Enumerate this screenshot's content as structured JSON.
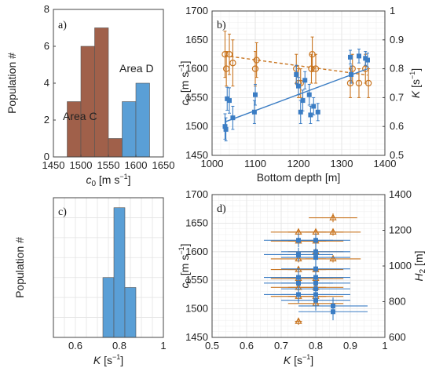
{
  "colors": {
    "blue": "#3b7dc4",
    "orange": "#c8741f",
    "brown": "#a0604a",
    "blueHist": "#5a9fd6",
    "purple": "#7a4f8a",
    "gray": "#5a5a5a"
  },
  "chart_data": [
    {
      "panel": "a)",
      "type": "bar",
      "title": "",
      "xlabel_base": "c",
      "xlabel_sub": "0",
      "xlabel_unit_pre": "[m s",
      "xlabel_unit_sup": "−1",
      "xlabel_unit_post": "]",
      "ylabel": "Population #",
      "xlim": [
        1450,
        1650
      ],
      "ylim": [
        0,
        8
      ],
      "xticks": [
        1450,
        1500,
        1550,
        1600,
        1650
      ],
      "yticks": [
        0,
        2,
        4,
        6,
        8
      ],
      "bin_width": 25,
      "series": [
        {
          "name": "Area C",
          "bins": [
            1487.5,
            1512.5,
            1537.5,
            1562.5,
            1587.5
          ],
          "values": [
            3,
            6,
            7,
            1,
            1
          ]
        },
        {
          "name": "Area D",
          "bins": [
            1587.5,
            1612.5
          ],
          "values": [
            3,
            4
          ]
        }
      ]
    },
    {
      "panel": "b)",
      "type": "scatter",
      "xlabel": "Bottom depth [m]",
      "ylabel_left_base": "c",
      "ylabel_left_sub": "0",
      "ylabel_left_unit_pre": "[m s",
      "ylabel_left_unit_sup": "−1",
      "ylabel_left_unit_post": "]",
      "ylabel_right_base": "K",
      "ylabel_right_unit_pre": "[s",
      "ylabel_right_unit_sup": "−1",
      "ylabel_right_unit_post": "]",
      "xlim": [
        1000,
        1400
      ],
      "ylim_left": [
        1450,
        1700
      ],
      "ylim_right": [
        0.5,
        1
      ],
      "xticks": [
        1000,
        1100,
        1200,
        1300,
        1400
      ],
      "yticks_left": [
        1450,
        1500,
        1550,
        1600,
        1650,
        1700
      ],
      "yticks_right": [
        0.5,
        0.6,
        0.7,
        0.8,
        0.9,
        1
      ],
      "c0_points": [
        {
          "x": 1030,
          "y": 1500,
          "err": 22
        },
        {
          "x": 1032,
          "y": 1495,
          "err": 20
        },
        {
          "x": 1035,
          "y": 1548,
          "err": 20
        },
        {
          "x": 1040,
          "y": 1545,
          "err": 22
        },
        {
          "x": 1048,
          "y": 1515,
          "err": 20
        },
        {
          "x": 1100,
          "y": 1555,
          "err": 18
        },
        {
          "x": 1098,
          "y": 1525,
          "err": 20
        },
        {
          "x": 1195,
          "y": 1590,
          "err": 16
        },
        {
          "x": 1200,
          "y": 1570,
          "err": 15
        },
        {
          "x": 1205,
          "y": 1525,
          "err": 20
        },
        {
          "x": 1210,
          "y": 1545,
          "err": 18
        },
        {
          "x": 1215,
          "y": 1580,
          "err": 15
        },
        {
          "x": 1225,
          "y": 1555,
          "err": 18
        },
        {
          "x": 1228,
          "y": 1520,
          "err": 15
        },
        {
          "x": 1235,
          "y": 1535,
          "err": 15
        },
        {
          "x": 1245,
          "y": 1525,
          "err": 15
        },
        {
          "x": 1320,
          "y": 1620,
          "err": 12
        },
        {
          "x": 1322,
          "y": 1590,
          "err": 15
        },
        {
          "x": 1340,
          "y": 1622,
          "err": 12
        },
        {
          "x": 1355,
          "y": 1618,
          "err": 12
        },
        {
          "x": 1360,
          "y": 1615,
          "err": 12
        }
      ],
      "c0_fit": {
        "x": [
          1030,
          1360
        ],
        "y": [
          1508,
          1600
        ]
      },
      "K_points": [
        {
          "x": 1030,
          "y": 0.85,
          "err": 0.08
        },
        {
          "x": 1033,
          "y": 0.8,
          "err": 0.06
        },
        {
          "x": 1040,
          "y": 0.85,
          "err": 0.07
        },
        {
          "x": 1048,
          "y": 0.82,
          "err": 0.08
        },
        {
          "x": 1100,
          "y": 0.8,
          "err": 0.06
        },
        {
          "x": 1103,
          "y": 0.83,
          "err": 0.06
        },
        {
          "x": 1195,
          "y": 0.8,
          "err": 0.05
        },
        {
          "x": 1200,
          "y": 0.75,
          "err": 0.05
        },
        {
          "x": 1205,
          "y": 0.75,
          "err": 0.05
        },
        {
          "x": 1230,
          "y": 0.8,
          "err": 0.05
        },
        {
          "x": 1232,
          "y": 0.85,
          "err": 0.06
        },
        {
          "x": 1240,
          "y": 0.8,
          "err": 0.05
        },
        {
          "x": 1320,
          "y": 0.75,
          "err": 0.05
        },
        {
          "x": 1325,
          "y": 0.8,
          "err": 0.05
        },
        {
          "x": 1340,
          "y": 0.75,
          "err": 0.05
        },
        {
          "x": 1355,
          "y": 0.8,
          "err": 0.05
        },
        {
          "x": 1362,
          "y": 0.75,
          "err": 0.05
        }
      ],
      "K_fit": {
        "x": [
          1030,
          1360
        ],
        "y": [
          0.845,
          0.778
        ]
      }
    },
    {
      "panel": "c)",
      "type": "bar",
      "xlabel_base": "K",
      "xlabel_unit_pre": "[s",
      "xlabel_unit_sup": "−1",
      "xlabel_unit_post": "]",
      "ylabel": "Population #",
      "xlim": [
        0.5,
        1.0
      ],
      "ylim": [
        0,
        14
      ],
      "xticks": [
        0.6,
        0.8,
        1
      ],
      "bin_width": 0.05,
      "series": [
        {
          "name": "",
          "bins": [
            0.75,
            0.8,
            0.85
          ],
          "values": [
            6,
            13,
            5
          ]
        }
      ]
    },
    {
      "panel": "d)",
      "type": "scatter",
      "xlabel_base": "K",
      "xlabel_unit_pre": "[s",
      "xlabel_unit_sup": "−1",
      "xlabel_unit_post": "]",
      "ylabel_left_base": "c",
      "ylabel_left_sub": "0",
      "ylabel_left_unit_pre": "[m s",
      "ylabel_left_unit_sup": "−1",
      "ylabel_left_unit_post": "]",
      "ylabel_right_base": "H",
      "ylabel_right_sub": "2",
      "ylabel_right_unit": "[m]",
      "xlim": [
        0.5,
        1.0
      ],
      "ylim_left": [
        1450,
        1700
      ],
      "ylim_right": [
        600,
        1400
      ],
      "xticks": [
        0.5,
        0.6,
        0.7,
        0.8,
        0.9,
        1
      ],
      "yticks_left": [
        1450,
        1500,
        1550,
        1600,
        1650,
        1700
      ],
      "yticks_right": [
        600,
        800,
        1000,
        1200,
        1400
      ],
      "c0_points": [
        {
          "x": 0.75,
          "y": 1620,
          "xerr": 0.1,
          "yerr": 12
        },
        {
          "x": 0.75,
          "y": 1595,
          "xerr": 0.1,
          "yerr": 12
        },
        {
          "x": 0.75,
          "y": 1555,
          "xerr": 0.1,
          "yerr": 15
        },
        {
          "x": 0.75,
          "y": 1545,
          "xerr": 0.1,
          "yerr": 15
        },
        {
          "x": 0.75,
          "y": 1525,
          "xerr": 0.1,
          "yerr": 15
        },
        {
          "x": 0.8,
          "y": 1620,
          "xerr": 0.1,
          "yerr": 12
        },
        {
          "x": 0.8,
          "y": 1590,
          "xerr": 0.1,
          "yerr": 15
        },
        {
          "x": 0.8,
          "y": 1570,
          "xerr": 0.1,
          "yerr": 15
        },
        {
          "x": 0.8,
          "y": 1555,
          "xerr": 0.1,
          "yerr": 15
        },
        {
          "x": 0.8,
          "y": 1545,
          "xerr": 0.1,
          "yerr": 18
        },
        {
          "x": 0.8,
          "y": 1535,
          "xerr": 0.1,
          "yerr": 15
        },
        {
          "x": 0.8,
          "y": 1525,
          "xerr": 0.1,
          "yerr": 15
        },
        {
          "x": 0.8,
          "y": 1515,
          "xerr": 0.1,
          "yerr": 18
        },
        {
          "x": 0.85,
          "y": 1505,
          "xerr": 0.1,
          "yerr": 15
        },
        {
          "x": 0.85,
          "y": 1495,
          "xerr": 0.1,
          "yerr": 15
        },
        {
          "x": 0.8,
          "y": 1600,
          "xerr": 0.1,
          "yerr": 12
        }
      ],
      "H2_points": [
        {
          "x": 0.85,
          "y": 1270,
          "xerr": 0.07,
          "yerr": 25
        },
        {
          "x": 0.75,
          "y": 1190,
          "xerr": 0.08,
          "yerr": 20
        },
        {
          "x": 0.8,
          "y": 1190,
          "xerr": 0.08,
          "yerr": 20
        },
        {
          "x": 0.85,
          "y": 1190,
          "xerr": 0.08,
          "yerr": 20
        },
        {
          "x": 0.75,
          "y": 1140,
          "xerr": 0.08,
          "yerr": 20
        },
        {
          "x": 0.8,
          "y": 1140,
          "xerr": 0.08,
          "yerr": 20
        },
        {
          "x": 0.8,
          "y": 1080,
          "xerr": 0.08,
          "yerr": 20
        },
        {
          "x": 0.75,
          "y": 1040,
          "xerr": 0.08,
          "yerr": 20
        },
        {
          "x": 0.85,
          "y": 1040,
          "xerr": 0.08,
          "yerr": 20
        },
        {
          "x": 0.75,
          "y": 980,
          "xerr": 0.08,
          "yerr": 20
        },
        {
          "x": 0.8,
          "y": 980,
          "xerr": 0.08,
          "yerr": 20
        },
        {
          "x": 0.75,
          "y": 930,
          "xerr": 0.08,
          "yerr": 20
        },
        {
          "x": 0.8,
          "y": 930,
          "xerr": 0.08,
          "yerr": 20
        },
        {
          "x": 0.75,
          "y": 880,
          "xerr": 0.08,
          "yerr": 20
        },
        {
          "x": 0.8,
          "y": 880,
          "xerr": 0.08,
          "yerr": 20
        },
        {
          "x": 0.75,
          "y": 830,
          "xerr": 0.08,
          "yerr": 20
        },
        {
          "x": 0.8,
          "y": 830,
          "xerr": 0.08,
          "yerr": 20
        },
        {
          "x": 0.8,
          "y": 790,
          "xerr": 0.08,
          "yerr": 20
        },
        {
          "x": 0.75,
          "y": 690,
          "xerr": 0.01,
          "yerr": 20
        }
      ]
    }
  ]
}
